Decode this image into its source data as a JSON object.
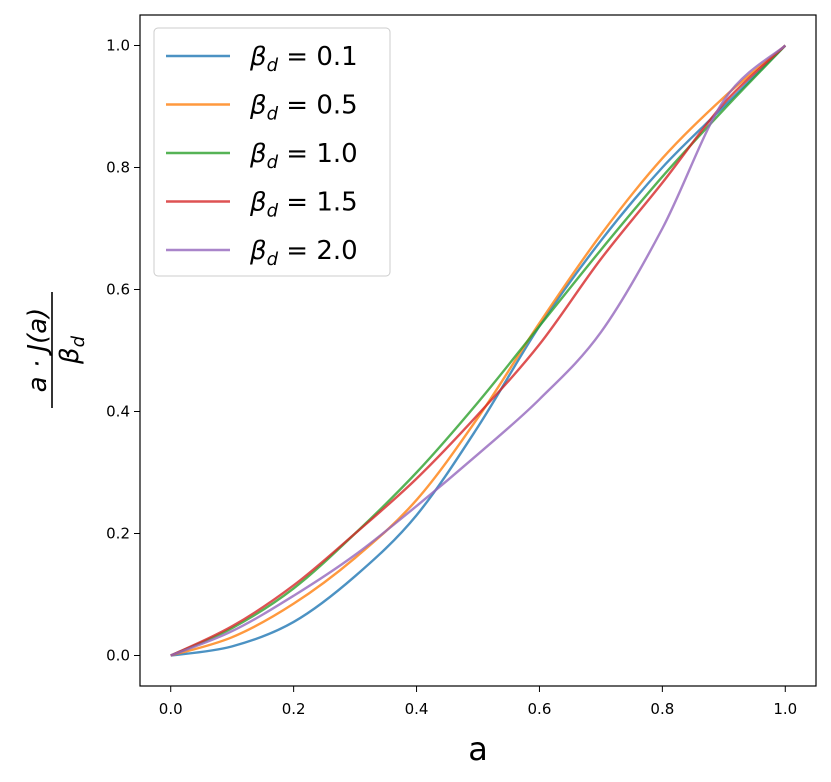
{
  "chart_data": {
    "type": "line",
    "xlabel": "a",
    "ylabel": "a · J(a) / β_d",
    "xlim": [
      -0.05,
      1.05
    ],
    "ylim": [
      -0.05,
      1.05
    ],
    "xticks": [
      "0.0",
      "0.2",
      "0.4",
      "0.6",
      "0.8",
      "1.0"
    ],
    "yticks": [
      "0.0",
      "0.2",
      "0.4",
      "0.6",
      "0.8",
      "1.0"
    ],
    "grid": false,
    "legend_position": "top-left",
    "x": [
      0.0,
      0.1,
      0.2,
      0.3,
      0.4,
      0.5,
      0.6,
      0.7,
      0.8,
      0.9,
      1.0
    ],
    "series": [
      {
        "name": "β_d = 0.1",
        "color": "#1f77b4",
        "values": [
          0.0,
          0.015,
          0.055,
          0.13,
          0.23,
          0.375,
          0.54,
          0.68,
          0.8,
          0.9,
          1.0
        ]
      },
      {
        "name": "β_d = 0.5",
        "color": "#ff7f0e",
        "values": [
          0.0,
          0.03,
          0.085,
          0.16,
          0.255,
          0.39,
          0.545,
          0.69,
          0.815,
          0.915,
          1.0
        ]
      },
      {
        "name": "β_d = 1.0",
        "color": "#2ca02c",
        "values": [
          0.0,
          0.045,
          0.11,
          0.2,
          0.3,
          0.415,
          0.54,
          0.665,
          0.785,
          0.895,
          1.0
        ]
      },
      {
        "name": "β_d = 1.5",
        "color": "#d62728",
        "values": [
          0.0,
          0.048,
          0.115,
          0.2,
          0.29,
          0.395,
          0.51,
          0.65,
          0.775,
          0.905,
          1.0
        ]
      },
      {
        "name": "β_d = 2.0",
        "color": "#9467bd",
        "values": [
          0.0,
          0.04,
          0.098,
          0.165,
          0.245,
          0.33,
          0.42,
          0.53,
          0.7,
          0.91,
          1.0
        ]
      }
    ]
  }
}
